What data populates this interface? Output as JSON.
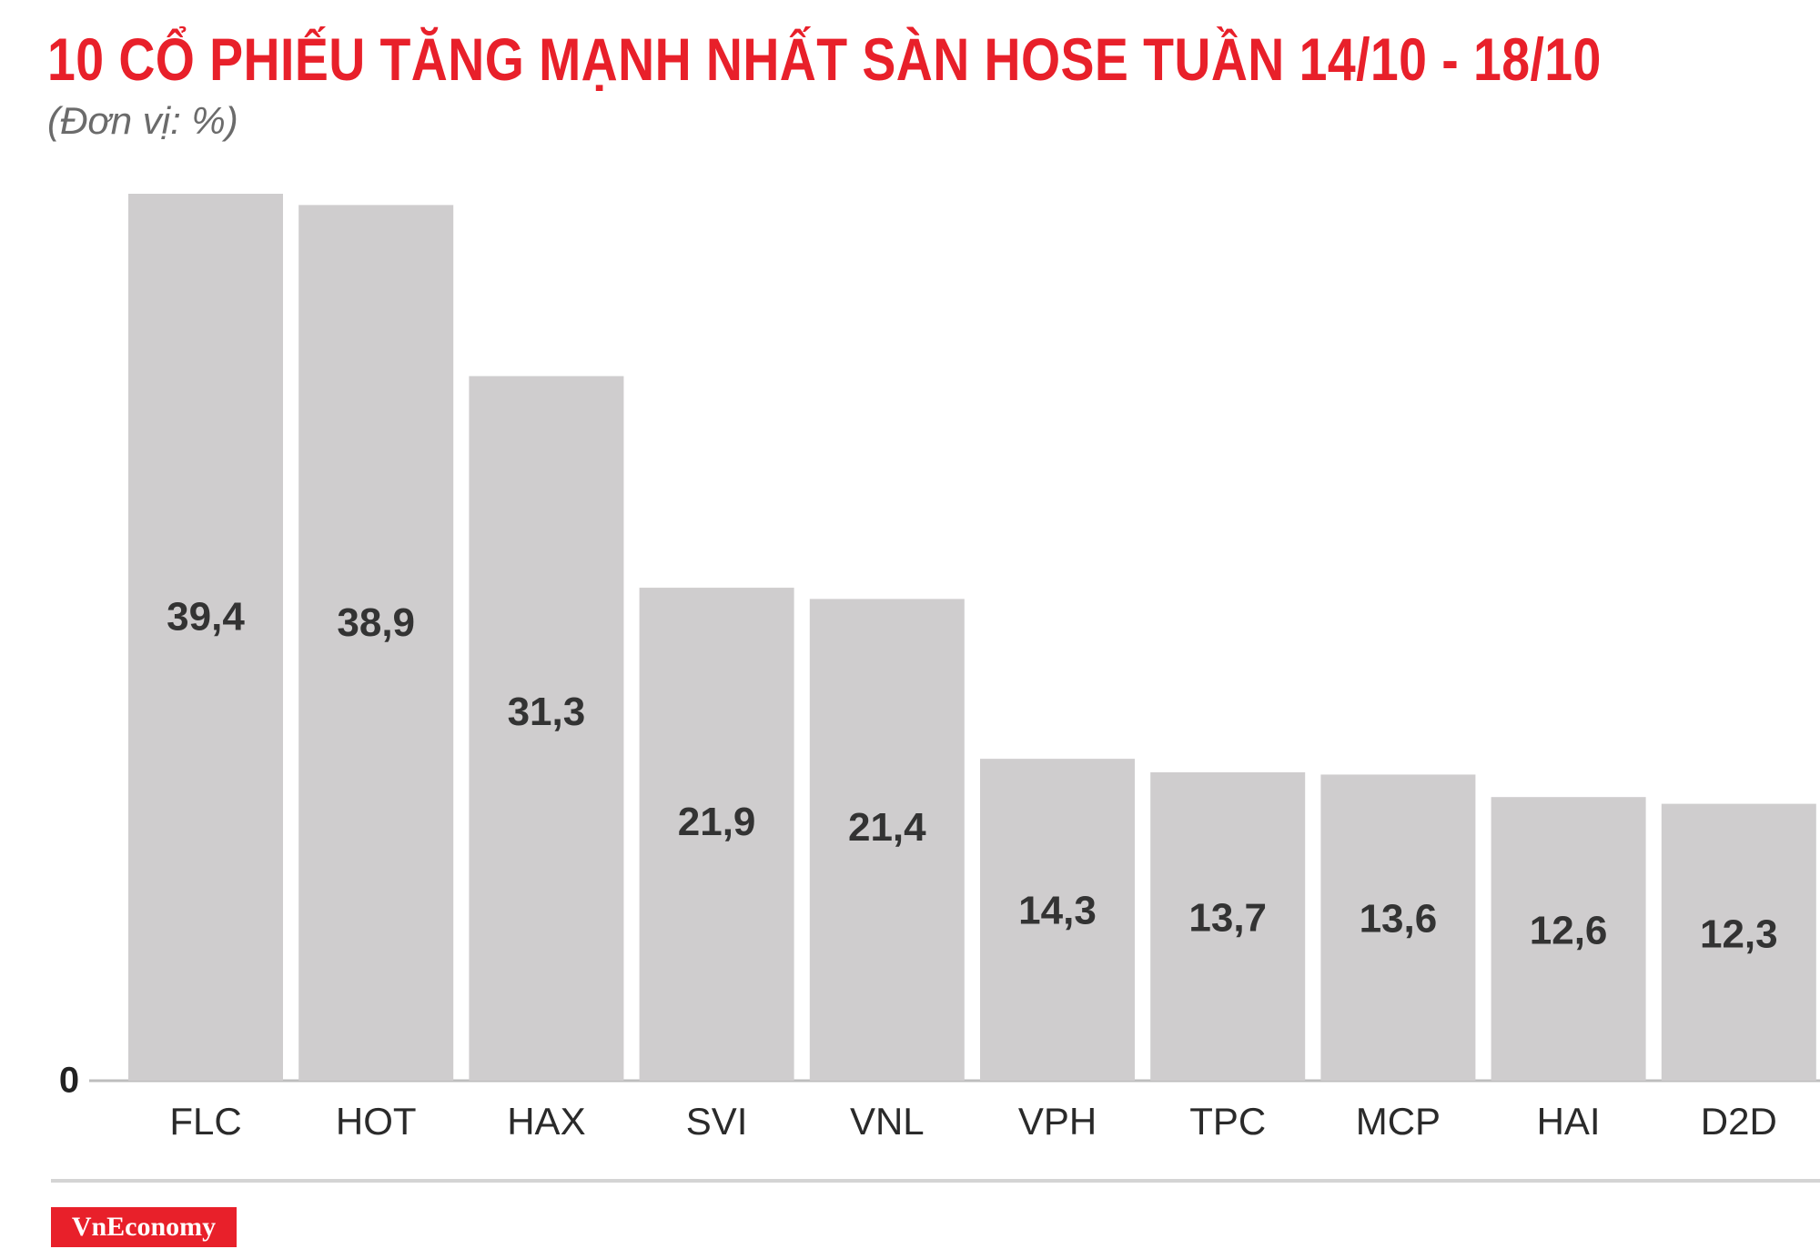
{
  "header": {
    "title": "10 CỔ PHIẾU TĂNG MẠNH NHẤT SÀN HOSE TUẦN 14/10 - 18/10",
    "unit": "(Đơn vị: %)"
  },
  "footer": {
    "brand": "VnEconomy"
  },
  "colors": {
    "accent": "#e8202a",
    "bar": "#cfcdce",
    "value_text": "#333333",
    "axis": "#bdbdbd"
  },
  "chart_data": {
    "type": "bar",
    "title": "10 CỔ PHIẾU TĂNG MẠNH NHẤT SÀN HOSE TUẦN 14/10 - 18/10",
    "subtitle": "(Đơn vị: %)",
    "categories": [
      "FLC",
      "HOT",
      "HAX",
      "SVI",
      "VNL",
      "VPH",
      "TPC",
      "MCP",
      "HAI",
      "D2D"
    ],
    "values": [
      39.4,
      38.9,
      31.3,
      21.9,
      21.4,
      14.3,
      13.7,
      13.6,
      12.6,
      12.3
    ],
    "value_labels": [
      "39,4",
      "38,9",
      "31,3",
      "21,9",
      "21,4",
      "14,3",
      "13,7",
      "13,6",
      "12,6",
      "12,3"
    ],
    "y_tick_labels": [
      "0"
    ],
    "ylim": [
      0,
      39.4
    ],
    "grid": false,
    "legend": "none"
  }
}
